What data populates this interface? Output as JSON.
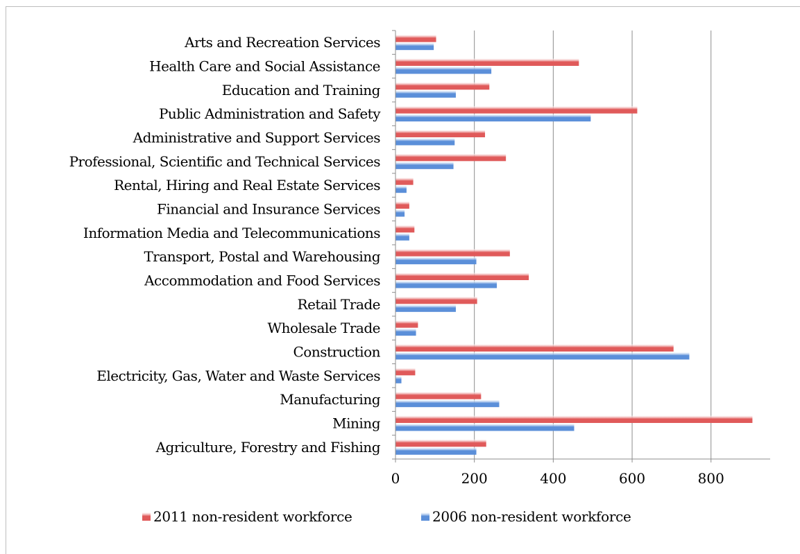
{
  "chart_data": {
    "type": "bar",
    "orientation": "horizontal",
    "categories": [
      "Arts and Recreation Services",
      "Health Care and Social Assistance",
      "Education and Training",
      "Public Administration and Safety",
      "Administrative and Support Services",
      "Professional, Scientific and Technical Services",
      "Rental, Hiring and Real Estate Services",
      "Financial and Insurance Services",
      "Information Media and Telecommunications",
      "Transport, Postal and Warehousing",
      "Accommodation and Food Services",
      "Retail Trade",
      "Wholesale Trade",
      "Construction",
      "Electricity, Gas, Water and Waste Services",
      "Manufacturing",
      "Mining",
      "Agriculture, Forestry and Fishing"
    ],
    "series": [
      {
        "name": "2011 non-resident workforce",
        "color": "#e05a5a",
        "values": [
          103,
          465,
          238,
          613,
          227,
          280,
          45,
          35,
          48,
          290,
          338,
          207,
          57,
          705,
          50,
          217,
          905,
          230
        ]
      },
      {
        "name": "2006 non-resident workforce",
        "color": "#5b8fd9",
        "values": [
          97,
          243,
          153,
          495,
          150,
          147,
          28,
          23,
          35,
          205,
          257,
          153,
          52,
          745,
          15,
          263,
          453,
          205
        ]
      }
    ],
    "xticks": [
      "0",
      "200",
      "400",
      "600",
      "800"
    ],
    "xlim": [
      0,
      950
    ],
    "grid": true,
    "legend_position": "bottom",
    "title": "",
    "xlabel": "",
    "ylabel": ""
  }
}
